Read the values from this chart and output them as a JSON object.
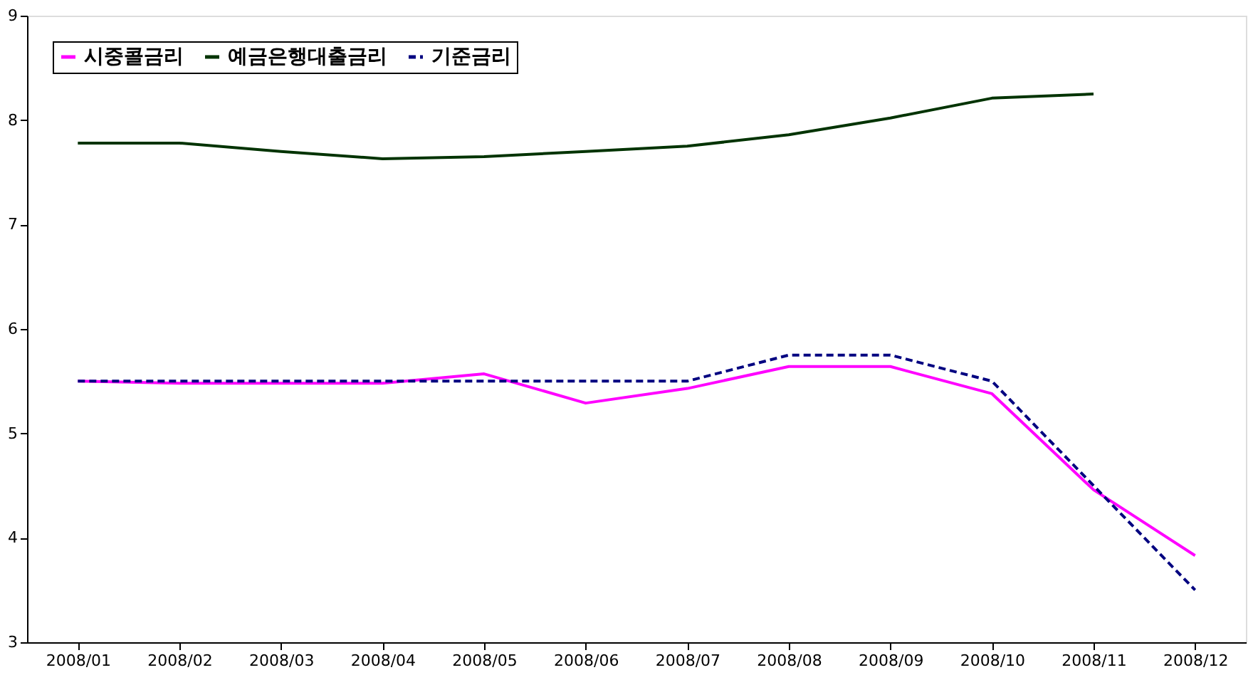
{
  "chart_data": {
    "type": "line",
    "categories": [
      "2008/01",
      "2008/02",
      "2008/03",
      "2008/04",
      "2008/05",
      "2008/06",
      "2008/07",
      "2008/08",
      "2008/09",
      "2008/10",
      "2008/11",
      "2008/12"
    ],
    "series": [
      {
        "name": "시중콜금리",
        "color": "#ff00ff",
        "line_style": "solid",
        "values": [
          5.5,
          5.48,
          5.48,
          5.48,
          5.57,
          5.29,
          5.43,
          5.64,
          5.64,
          5.38,
          4.46,
          3.83
        ]
      },
      {
        "name": "예금은행대출금리",
        "color": "#003300",
        "line_style": "solid",
        "values": [
          7.78,
          7.78,
          7.7,
          7.63,
          7.65,
          7.7,
          7.75,
          7.86,
          8.02,
          8.21,
          8.25,
          null
        ]
      },
      {
        "name": "기준금리",
        "color": "#000080",
        "line_style": "dashed",
        "values": [
          5.5,
          5.5,
          5.5,
          5.5,
          5.5,
          5.5,
          5.5,
          5.75,
          5.75,
          5.5,
          4.5,
          3.5
        ]
      }
    ],
    "ylim": [
      3,
      9
    ],
    "yticks": [
      3,
      4,
      5,
      6,
      7,
      8,
      9
    ],
    "grid": false,
    "legend": "top left",
    "marker": "none"
  }
}
